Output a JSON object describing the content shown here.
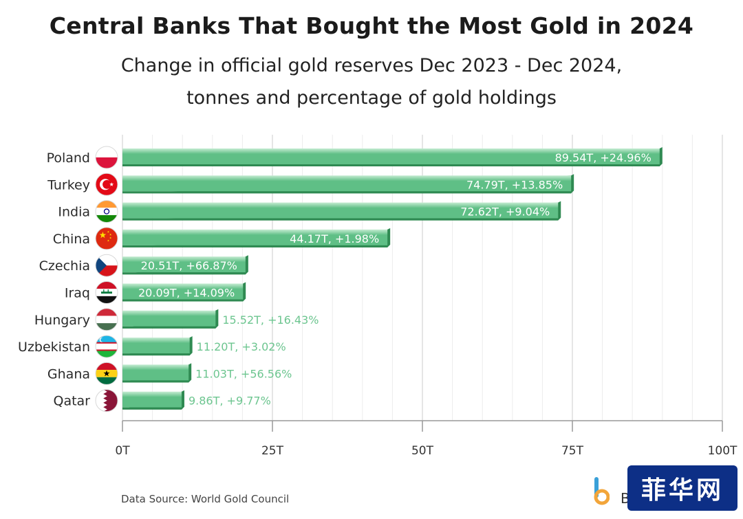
{
  "header": {
    "title": "Central Banks That Bought the Most Gold in 2024",
    "subtitle_line1": "Change in official gold reserves Dec 2023 - Dec 2024,",
    "subtitle_line2": "tonnes and percentage of gold holdings"
  },
  "footer": {
    "source": "Data Source: World Gold Council",
    "brand_letter": "B",
    "watermark": "菲华网"
  },
  "colors": {
    "bar_fill": "#5fbf86",
    "bar_highlight": "#c5ecd2",
    "bar_shadow": "#2f8a52",
    "label_light": "#ffffff",
    "label_outside": "#6cc58f",
    "grid": "#dddddd",
    "axis": "#999999",
    "watermark_bg": "#0d2f86"
  },
  "chart_data": {
    "type": "bar",
    "orientation": "horizontal",
    "title": "Central Banks That Bought the Most Gold in 2024",
    "subtitle": "Change in official gold reserves Dec 2023 - Dec 2024, tonnes and percentage of gold holdings",
    "categories": [
      "Poland",
      "Turkey",
      "India",
      "China",
      "Czechia",
      "Iraq",
      "Hungary",
      "Uzbekistan",
      "Ghana",
      "Qatar"
    ],
    "flag_icons": [
      "poland-flag-icon",
      "turkey-flag-icon",
      "india-flag-icon",
      "china-flag-icon",
      "czechia-flag-icon",
      "iraq-flag-icon",
      "hungary-flag-icon",
      "uzbekistan-flag-icon",
      "ghana-flag-icon",
      "qatar-flag-icon"
    ],
    "values": [
      89.54,
      74.79,
      72.62,
      44.17,
      20.51,
      20.09,
      15.52,
      11.2,
      11.03,
      9.86
    ],
    "data_labels": [
      "89.54T, +24.96%",
      "74.79T, +13.85%",
      "72.62T, +9.04%",
      "44.17T, +1.98%",
      "20.51T, +66.87%",
      "20.09T, +14.09%",
      "15.52T, +16.43%",
      "11.20T, +3.02%",
      "11.03T, +56.56%",
      "9.86T, +9.77%"
    ],
    "percent_change": [
      24.96,
      13.85,
      9.04,
      1.98,
      66.87,
      14.09,
      16.43,
      3.02,
      56.56,
      9.77
    ],
    "xlim": [
      0,
      100
    ],
    "xticks": [
      0,
      25,
      50,
      75,
      100
    ],
    "xtick_labels": [
      "0T",
      "25T",
      "50T",
      "75T",
      "100T"
    ],
    "xlabel": "",
    "ylabel": "",
    "grid": true
  }
}
